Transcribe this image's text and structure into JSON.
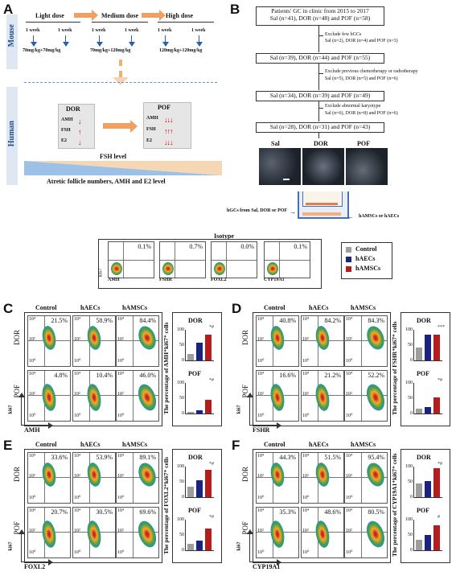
{
  "panelA": {
    "letter": "A",
    "mouse_label": "Mouse",
    "human_label": "Human",
    "doses": [
      "Light dose",
      "Medium dose",
      "High dose"
    ],
    "weeks": [
      "1 week",
      "1 week",
      "1 week",
      "1 week",
      "1 week",
      "1 week"
    ],
    "dose_amounts": [
      "70mg/kg+70mg/kg",
      "70mg/kg+120mg/kg",
      "120mg/kg+120mg/kg"
    ],
    "dor": "DOR",
    "pof": "POF",
    "hormones": [
      "AMH",
      "FSH",
      "E2"
    ],
    "fsh_level": "FSH level",
    "atretic": "Atretic follicle numbers, AMH and E2 level"
  },
  "panelB": {
    "letter": "B",
    "box1_line1": "Patients' GC in clinic from 2015 to 2017",
    "box1_line2": "Sal (n=41), DOR (n=48) and POF (n=58)",
    "ex1_title": "Exclude few hGCs",
    "ex1_counts": "Sal (n=2), DOR (n=4) and POF (n=3)",
    "box2": "Sal (n=39), DOR (n=44) and POF (n=55)",
    "ex2_title": "Exclude previous chemotherapy or radiotherapy",
    "ex2_counts": "Sal (n=5), DOR (n=5) and POF (n=6)",
    "box3": "Sal (n=34), DOR (n=39) and POF (n=49)",
    "ex3_title": "Exclude abnormal karyotype",
    "ex3_counts": "Sal (n=6), DOR (n=8) and POF (n=6)",
    "box4": "Sal (n=28), DOR (n=31) and POF (n=43)",
    "img_labels": [
      "Sal",
      "DOR",
      "POF"
    ],
    "hgc_label": "hGCs from Sal, DOR or POF",
    "cells_label": "hAMSCs or hAECs"
  },
  "isotype": {
    "title": "Isotype",
    "y_label": "ki67",
    "markers": [
      "AMH",
      "FSHR",
      "FOXL2",
      "CYP19A1"
    ],
    "percents": [
      "0.1%",
      "0.7%",
      "0.0%",
      "0.1%"
    ]
  },
  "legend": {
    "items": [
      {
        "label": "Control",
        "color": "#9e9e9e"
      },
      {
        "label": "hAECs",
        "color": "#1a237e"
      },
      {
        "label": "hAMSCs",
        "color": "#b71c1c"
      }
    ]
  },
  "tick_label": "10⁴",
  "tick_label2": "10²",
  "tick_label0": "10⁰",
  "panels": [
    {
      "letter": "C",
      "marker": "AMH",
      "ylabel": "ki67",
      "cols": [
        "Control",
        "hAECs",
        "hAMSCs"
      ],
      "rows": [
        "DOR",
        "POF"
      ],
      "dor_pct": [
        "21.5%",
        "58.9%",
        "84.4%"
      ],
      "pof_pct": [
        "4.8%",
        "10.4%",
        "46.0%"
      ],
      "chart_axis": "The percentage of AMH⁺ki67⁺ cells",
      "chart_dor_title": "DOR",
      "chart_pof_title": "POF",
      "dor_sig": "*#",
      "pof_sig": "*#"
    },
    {
      "letter": "D",
      "marker": "FSHR",
      "ylabel": "ki67",
      "cols": [
        "Control",
        "hAECs",
        "hAMSCs"
      ],
      "rows": [
        "DOR",
        "POF"
      ],
      "dor_pct": [
        "40.8%",
        "84.2%",
        "84.3%"
      ],
      "pof_pct": [
        "16.6%",
        "21.2%",
        "52.2%"
      ],
      "chart_axis": "The percentage of FSHR⁺ki67⁺ cells",
      "chart_dor_title": "DOR",
      "chart_pof_title": "POF",
      "dor_sig": "***",
      "pof_sig": "*#"
    },
    {
      "letter": "E",
      "marker": "FOXL2",
      "ylabel": "ki67",
      "cols": [
        "Control",
        "hAECs",
        "hAMSCs"
      ],
      "rows": [
        "DOR",
        "POF"
      ],
      "dor_pct": [
        "33.6%",
        "53.9%",
        "89.1%"
      ],
      "pof_pct": [
        "20.7%",
        "30.5%",
        "69.6%"
      ],
      "chart_axis": "The percentage of FOXL2⁺ki67⁺ cells",
      "chart_dor_title": "DOR",
      "chart_pof_title": "POF",
      "dor_sig": "*#",
      "pof_sig": "*#"
    },
    {
      "letter": "F",
      "marker": "CYP19A1",
      "ylabel": "ki67",
      "cols": [
        "Control",
        "hAECs",
        "hAMSCs"
      ],
      "rows": [
        "DOR",
        "POF"
      ],
      "dor_pct": [
        "44.3%",
        "51.5%",
        "95.4%"
      ],
      "pof_pct": [
        "35.3%",
        "48.6%",
        "80.5%"
      ],
      "chart_axis": "The percentage of CYP19A1⁺ki67⁺ cells",
      "chart_dor_title": "DOR",
      "chart_pof_title": "POF",
      "dor_sig": "*#",
      "pof_sig": "#"
    }
  ],
  "chart_data": [
    {
      "type": "bar",
      "title": "DOR",
      "ylim": [
        0,
        100
      ],
      "ytick_labels": [
        "0",
        "50",
        "100"
      ],
      "categories": [
        "Control",
        "hAECs",
        "hAMSCs"
      ],
      "values": [
        21,
        59,
        84
      ]
    },
    {
      "type": "bar",
      "title": "POF",
      "ylim": [
        0,
        100
      ],
      "ytick_labels": [
        "0",
        "50",
        "100"
      ],
      "categories": [
        "Control",
        "hAECs",
        "hAMSCs"
      ],
      "values": [
        5,
        10,
        46
      ]
    },
    {
      "type": "bar",
      "title": "DOR",
      "ylim": [
        0,
        100
      ],
      "ytick_labels": [
        "0",
        "50",
        "100"
      ],
      "categories": [
        "Control",
        "hAECs",
        "hAMSCs"
      ],
      "values": [
        41,
        84,
        84
      ]
    },
    {
      "type": "bar",
      "title": "POF",
      "ylim": [
        0,
        100
      ],
      "ytick_labels": [
        "0",
        "50",
        "100"
      ],
      "categories": [
        "Control",
        "hAECs",
        "hAMSCs"
      ],
      "values": [
        17,
        21,
        52
      ]
    },
    {
      "type": "bar",
      "title": "DOR",
      "ylim": [
        0,
        100
      ],
      "ytick_labels": [
        "0",
        "50",
        "100"
      ],
      "categories": [
        "Control",
        "hAECs",
        "hAMSCs"
      ],
      "values": [
        34,
        54,
        89
      ]
    },
    {
      "type": "bar",
      "title": "POF",
      "ylim": [
        0,
        100
      ],
      "ytick_labels": [
        "0",
        "50",
        "100"
      ],
      "categories": [
        "Control",
        "hAECs",
        "hAMSCs"
      ],
      "values": [
        21,
        31,
        70
      ]
    },
    {
      "type": "bar",
      "title": "DOR",
      "ylim": [
        0,
        100
      ],
      "ytick_labels": [
        "0",
        "50",
        "100"
      ],
      "categories": [
        "Control",
        "hAECs",
        "hAMSCs"
      ],
      "values": [
        44,
        52,
        95
      ]
    },
    {
      "type": "bar",
      "title": "POF",
      "ylim": [
        0,
        100
      ],
      "ytick_labels": [
        "0",
        "50",
        "100"
      ],
      "categories": [
        "Control",
        "hAECs",
        "hAMSCs"
      ],
      "values": [
        35,
        49,
        81
      ]
    }
  ]
}
